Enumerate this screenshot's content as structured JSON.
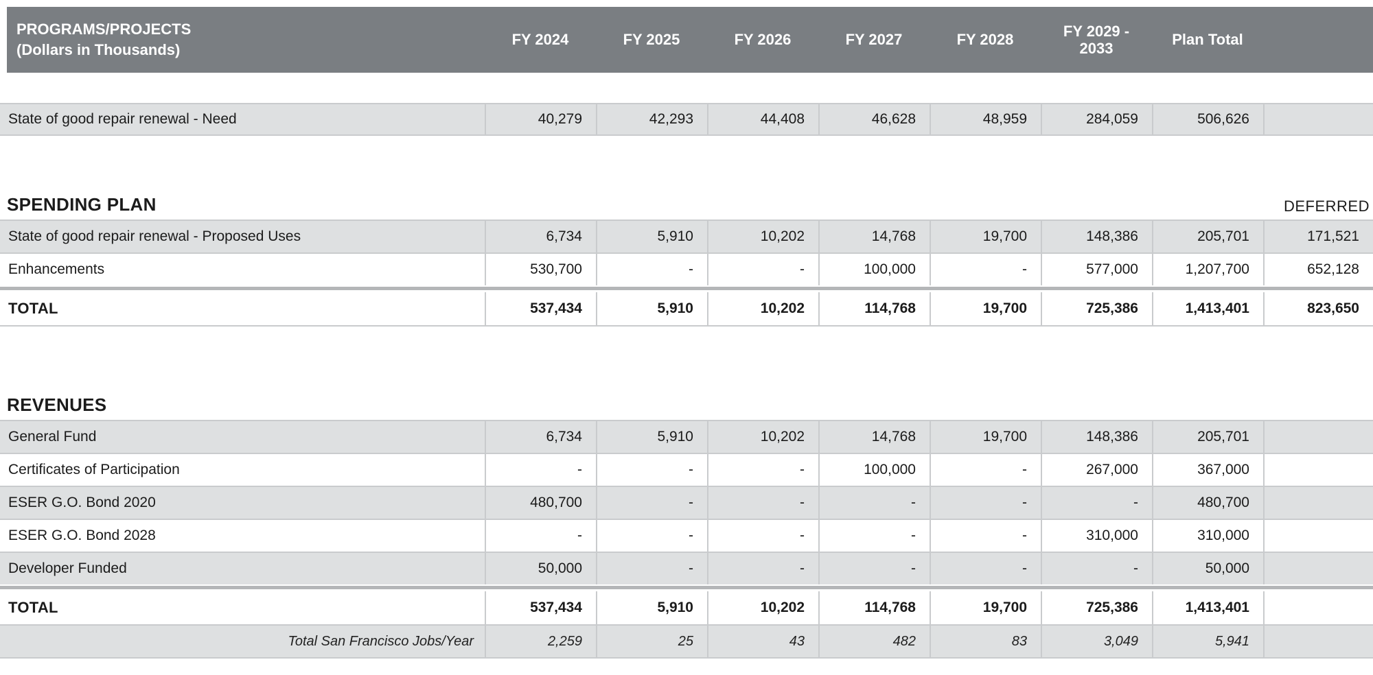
{
  "header": {
    "title_line1": "PROGRAMS/PROJECTS",
    "title_line2": "(Dollars in Thousands)",
    "columns": [
      "FY 2024",
      "FY 2025",
      "FY 2026",
      "FY 2027",
      "FY 2028",
      "FY 2029 - 2033",
      "Plan Total"
    ]
  },
  "need_row": {
    "label": "State of good repair renewal - Need",
    "values": [
      "40,279",
      "42,293",
      "44,408",
      "46,628",
      "48,959",
      "284,059",
      "506,626"
    ],
    "deferred": ""
  },
  "spending_plan": {
    "title": "SPENDING PLAN",
    "deferred_header": "DEFERRED",
    "rows": [
      {
        "label": "State of good repair renewal - Proposed Uses",
        "values": [
          "6,734",
          "5,910",
          "10,202",
          "14,768",
          "19,700",
          "148,386",
          "205,701"
        ],
        "deferred": "171,521"
      },
      {
        "label": "Enhancements",
        "values": [
          "530,700",
          "-",
          "-",
          "100,000",
          "-",
          "577,000",
          "1,207,700"
        ],
        "deferred": "652,128"
      }
    ],
    "total": {
      "label": "TOTAL",
      "values": [
        "537,434",
        "5,910",
        "10,202",
        "114,768",
        "19,700",
        "725,386",
        "1,413,401"
      ],
      "deferred": "823,650"
    }
  },
  "revenues": {
    "title": "REVENUES",
    "rows": [
      {
        "label": "General Fund",
        "values": [
          "6,734",
          "5,910",
          "10,202",
          "14,768",
          "19,700",
          "148,386",
          "205,701"
        ],
        "deferred": ""
      },
      {
        "label": "Certificates of Participation",
        "values": [
          "-",
          "-",
          "-",
          "100,000",
          "-",
          "267,000",
          "367,000"
        ],
        "deferred": ""
      },
      {
        "label": "ESER G.O. Bond 2020",
        "values": [
          "480,700",
          "-",
          "-",
          "-",
          "-",
          "-",
          "480,700"
        ],
        "deferred": ""
      },
      {
        "label": "ESER G.O. Bond 2028",
        "values": [
          "-",
          "-",
          "-",
          "-",
          "-",
          "310,000",
          "310,000"
        ],
        "deferred": ""
      },
      {
        "label": "Developer Funded",
        "values": [
          "50,000",
          "-",
          "-",
          "-",
          "-",
          "-",
          "50,000"
        ],
        "deferred": ""
      }
    ],
    "total": {
      "label": "TOTAL",
      "values": [
        "537,434",
        "5,910",
        "10,202",
        "114,768",
        "19,700",
        "725,386",
        "1,413,401"
      ],
      "deferred": ""
    },
    "jobs": {
      "label": "Total San Francisco Jobs/Year",
      "values": [
        "2,259",
        "25",
        "43",
        "482",
        "83",
        "3,049",
        "5,941"
      ],
      "deferred": ""
    }
  },
  "colors": {
    "header_bg": "#7a7e82",
    "row_gray": "#dee0e1",
    "divider": "#c9cbcd",
    "thick_divider": "#b4b6b8",
    "text": "#1b1b1b"
  }
}
